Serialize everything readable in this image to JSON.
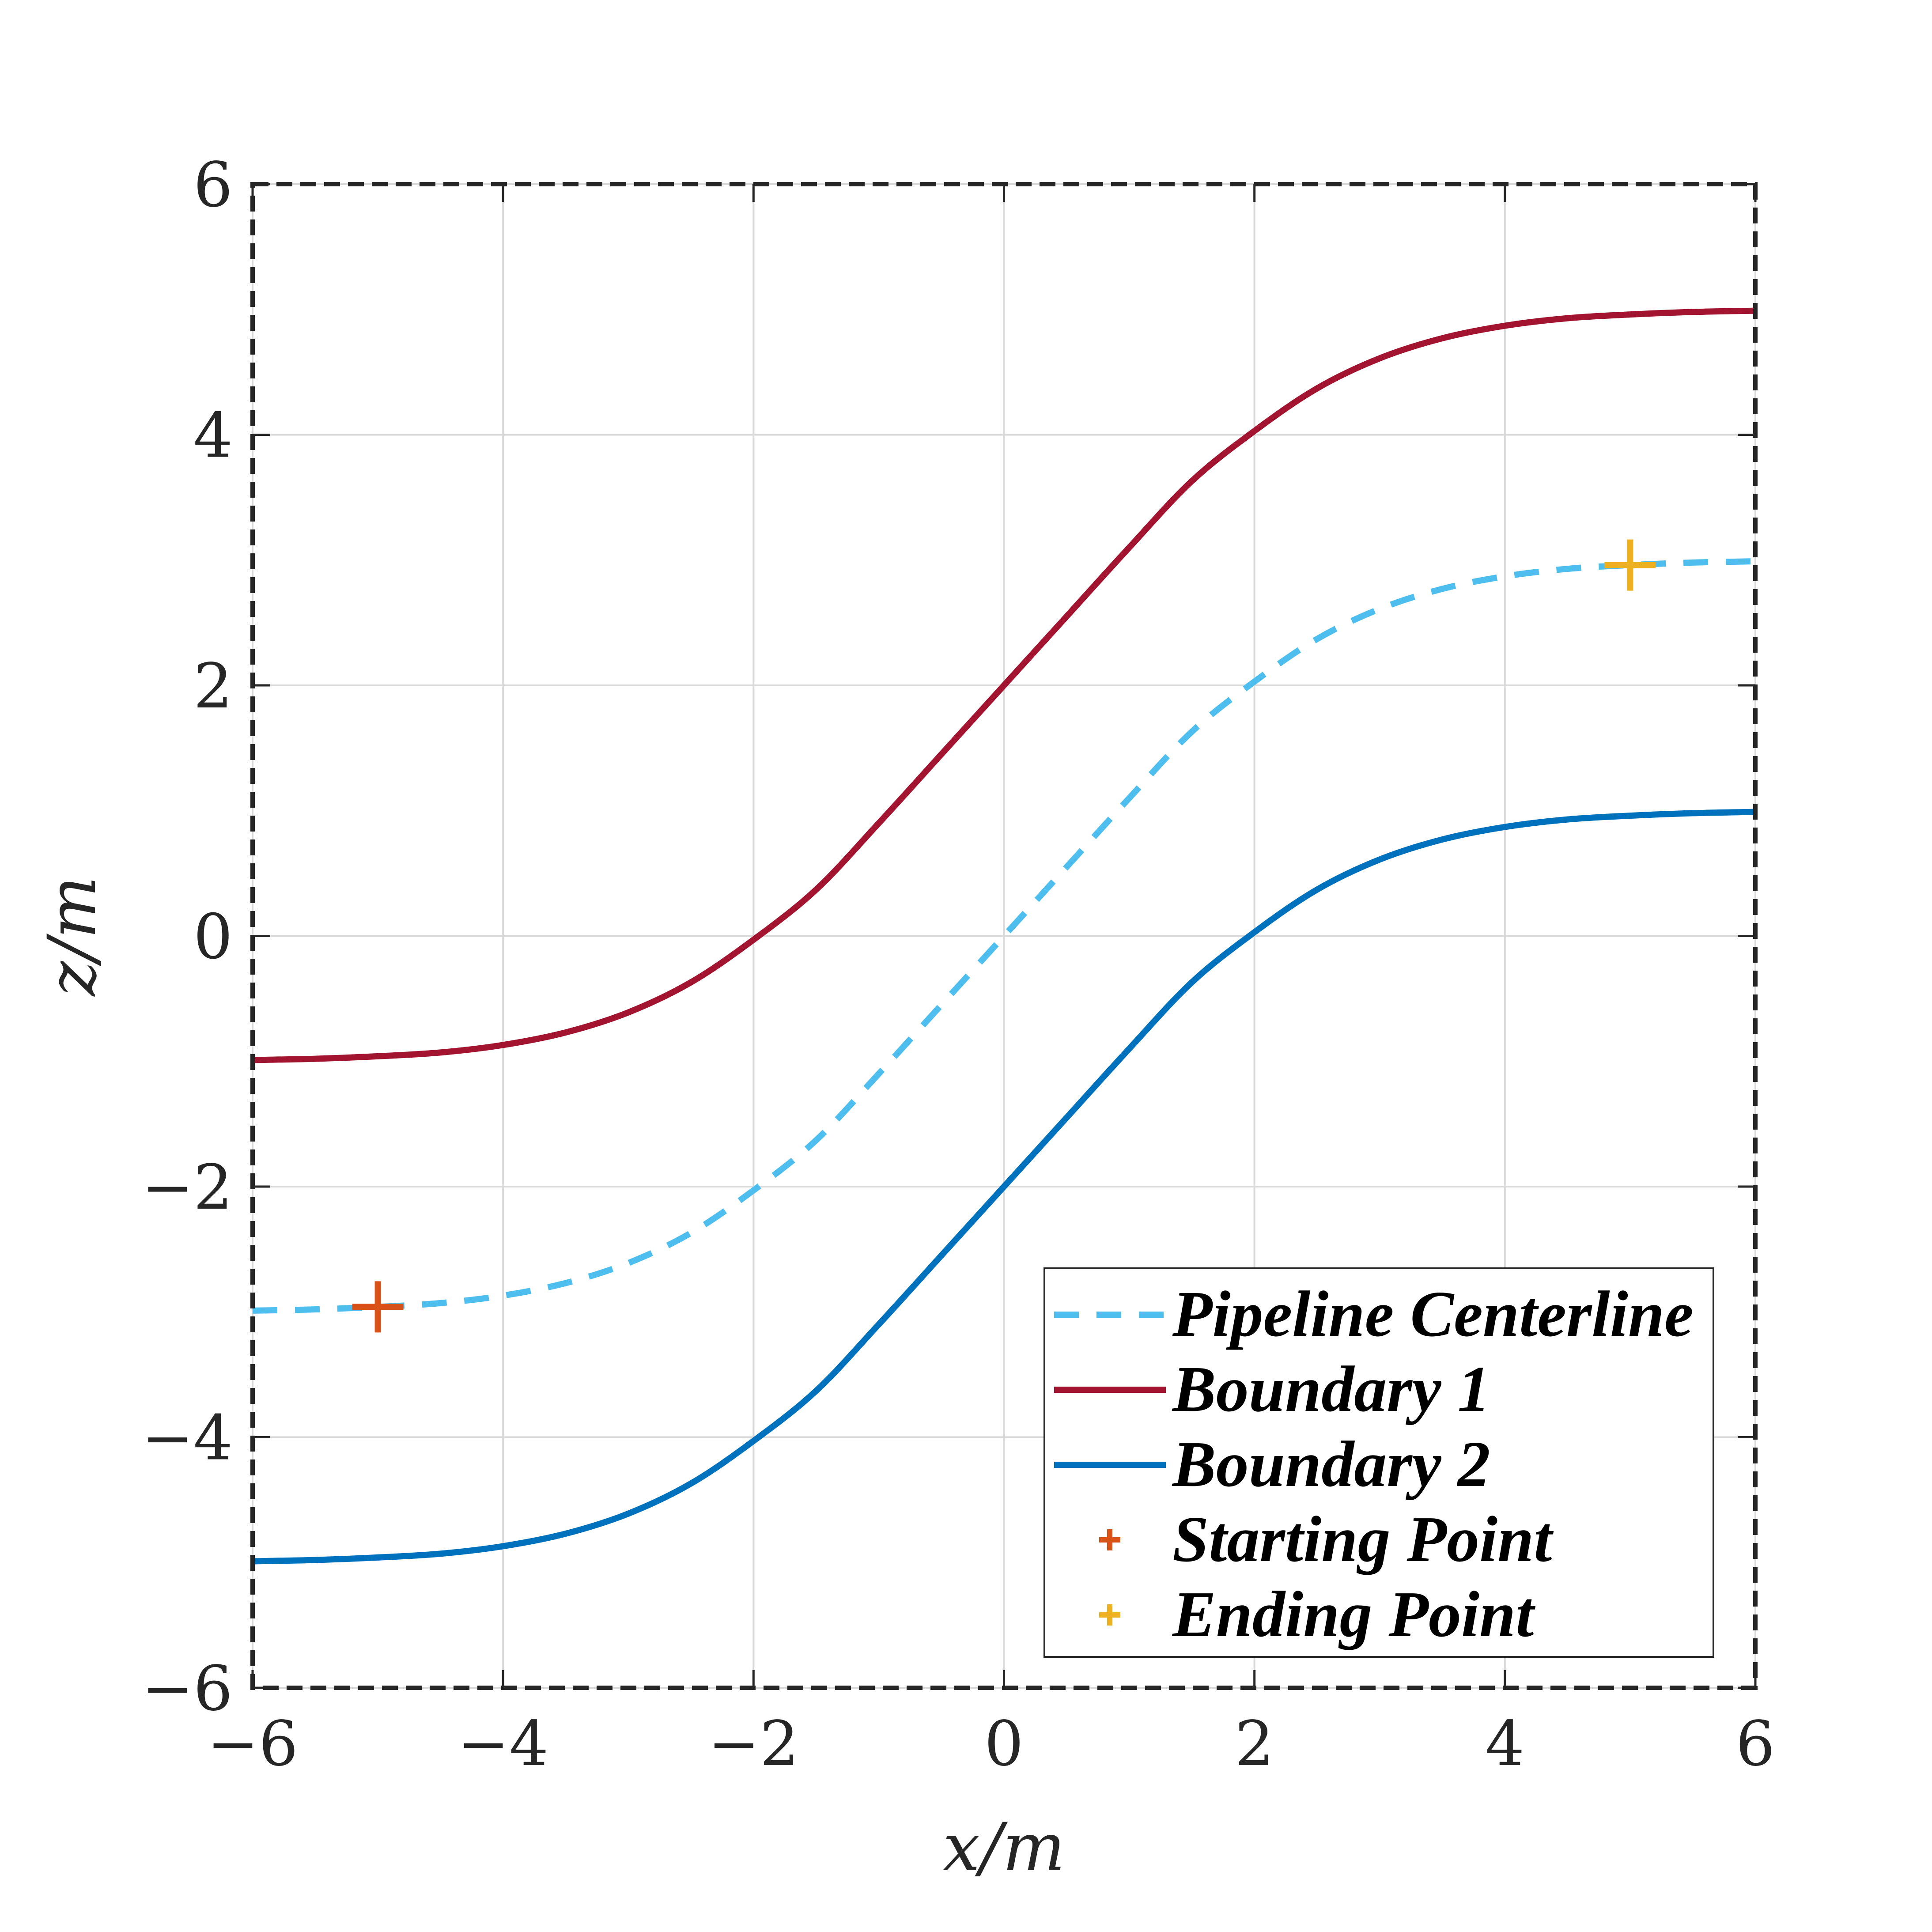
{
  "chart_data": {
    "type": "line",
    "title": "",
    "xlabel": "x/m",
    "ylabel": "z/m",
    "xlim": [
      -6,
      6
    ],
    "ylim": [
      -6,
      6
    ],
    "x_ticks": [
      -6,
      -4,
      -2,
      0,
      2,
      4,
      6
    ],
    "y_ticks": [
      -6,
      -4,
      -2,
      0,
      2,
      4,
      6
    ],
    "x_tick_labels": [
      "−6",
      "−4",
      "−2",
      "0",
      "2",
      "4",
      "6"
    ],
    "y_tick_labels": [
      "−6",
      "−4",
      "−2",
      "0",
      "2",
      "4",
      "6"
    ],
    "grid": true,
    "legend_position": "bottom-right",
    "series": [
      {
        "name": "Pipeline Centerline",
        "style": "dashed",
        "color": "#4DBEEE",
        "x": [
          -6,
          -5.5,
          -5,
          -4.5,
          -4,
          -3.5,
          -3,
          -2.5,
          -2,
          -1.5,
          -1,
          -0.5,
          0,
          0.5,
          1,
          1.5,
          2,
          2.5,
          3,
          3.5,
          4,
          4.5,
          5,
          5.5,
          6
        ],
        "y": [
          -2.99,
          -2.98,
          -2.96,
          -2.93,
          -2.87,
          -2.77,
          -2.61,
          -2.37,
          -2.03,
          -1.63,
          -1.1,
          -0.55,
          0,
          0.55,
          1.1,
          1.63,
          2.03,
          2.37,
          2.61,
          2.77,
          2.87,
          2.93,
          2.96,
          2.98,
          2.99
        ]
      },
      {
        "name": "Boundary 1",
        "style": "solid",
        "color": "#A2142F",
        "x": [
          -6,
          -5.5,
          -5,
          -4.5,
          -4,
          -3.5,
          -3,
          -2.5,
          -2,
          -1.5,
          -1,
          -0.5,
          0,
          0.5,
          1,
          1.5,
          2,
          2.5,
          3,
          3.5,
          4,
          4.5,
          5,
          5.5,
          6
        ],
        "y": [
          -0.99,
          -0.98,
          -0.96,
          -0.93,
          -0.87,
          -0.77,
          -0.61,
          -0.37,
          -0.03,
          0.37,
          0.9,
          1.45,
          2,
          2.55,
          3.1,
          3.63,
          4.03,
          4.37,
          4.61,
          4.77,
          4.87,
          4.93,
          4.96,
          4.98,
          4.99
        ]
      },
      {
        "name": "Boundary 2",
        "style": "solid",
        "color": "#0072BD",
        "x": [
          -6,
          -5.5,
          -5,
          -4.5,
          -4,
          -3.5,
          -3,
          -2.5,
          -2,
          -1.5,
          -1,
          -0.5,
          0,
          0.5,
          1,
          1.5,
          2,
          2.5,
          3,
          3.5,
          4,
          4.5,
          5,
          5.5,
          6
        ],
        "y": [
          -4.99,
          -4.98,
          -4.96,
          -4.93,
          -4.87,
          -4.77,
          -4.61,
          -4.37,
          -4.03,
          -3.63,
          -3.1,
          -2.55,
          -2,
          -1.45,
          -0.9,
          -0.37,
          0.03,
          0.37,
          0.61,
          0.77,
          0.87,
          0.93,
          0.96,
          0.98,
          0.99
        ]
      }
    ],
    "points": [
      {
        "name": "Starting Point",
        "marker": "+",
        "color": "#D95319",
        "x": -5,
        "y": -2.96
      },
      {
        "name": "Ending Point",
        "marker": "+",
        "color": "#EDB120",
        "x": 5,
        "y": 2.96
      }
    ]
  }
}
